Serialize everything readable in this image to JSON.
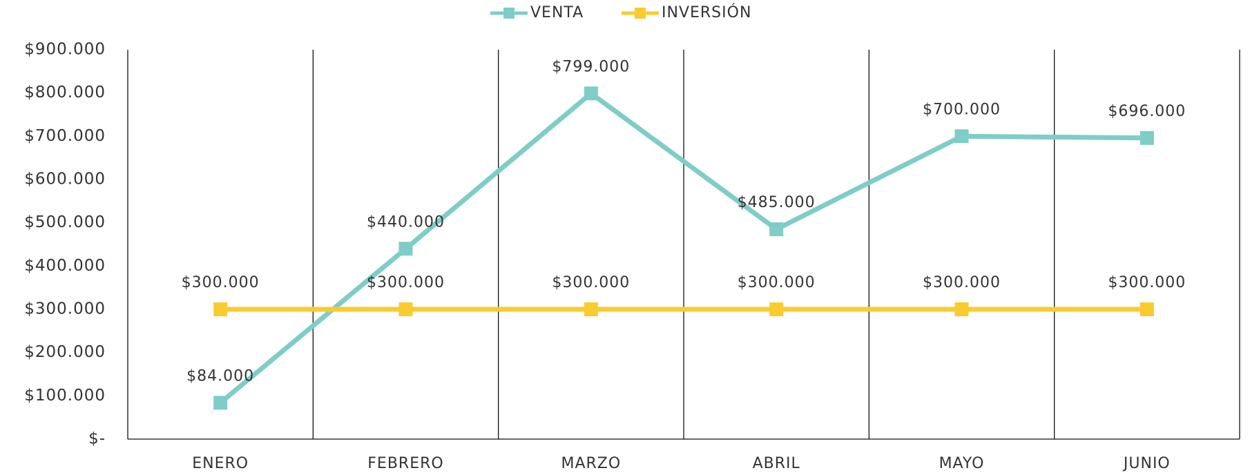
{
  "chart_data": {
    "type": "line",
    "categories": [
      "ENERO",
      "FEBRERO",
      "MARZO",
      "ABRIL",
      "MAYO",
      "JUNIO"
    ],
    "series": [
      {
        "name": "VENTA",
        "color": "#7ecdc7",
        "values": [
          84000,
          440000,
          799000,
          485000,
          700000,
          696000
        ],
        "value_labels": [
          "$84.000",
          "$440.000",
          "$799.000",
          "$485.000",
          "$700.000",
          "$696.000"
        ]
      },
      {
        "name": "INVERSIÓN",
        "color": "#f9cb2e",
        "values": [
          300000,
          300000,
          300000,
          300000,
          300000,
          300000
        ],
        "value_labels": [
          "$300.000",
          "$300.000",
          "$300.000",
          "$300.000",
          "$300.000",
          "$300.000"
        ]
      }
    ],
    "ylim": [
      0,
      900000
    ],
    "yticks": [
      {
        "value": 0,
        "label": "$-"
      },
      {
        "value": 100000,
        "label": "$100.000"
      },
      {
        "value": 200000,
        "label": "$200.000"
      },
      {
        "value": 300000,
        "label": "$300.000"
      },
      {
        "value": 400000,
        "label": "$400.000"
      },
      {
        "value": 500000,
        "label": "$500.000"
      },
      {
        "value": 600000,
        "label": "$600.000"
      },
      {
        "value": 700000,
        "label": "$700.000"
      },
      {
        "value": 800000,
        "label": "$800.000"
      },
      {
        "value": 900000,
        "label": "$900.000"
      }
    ],
    "legend": "top"
  }
}
